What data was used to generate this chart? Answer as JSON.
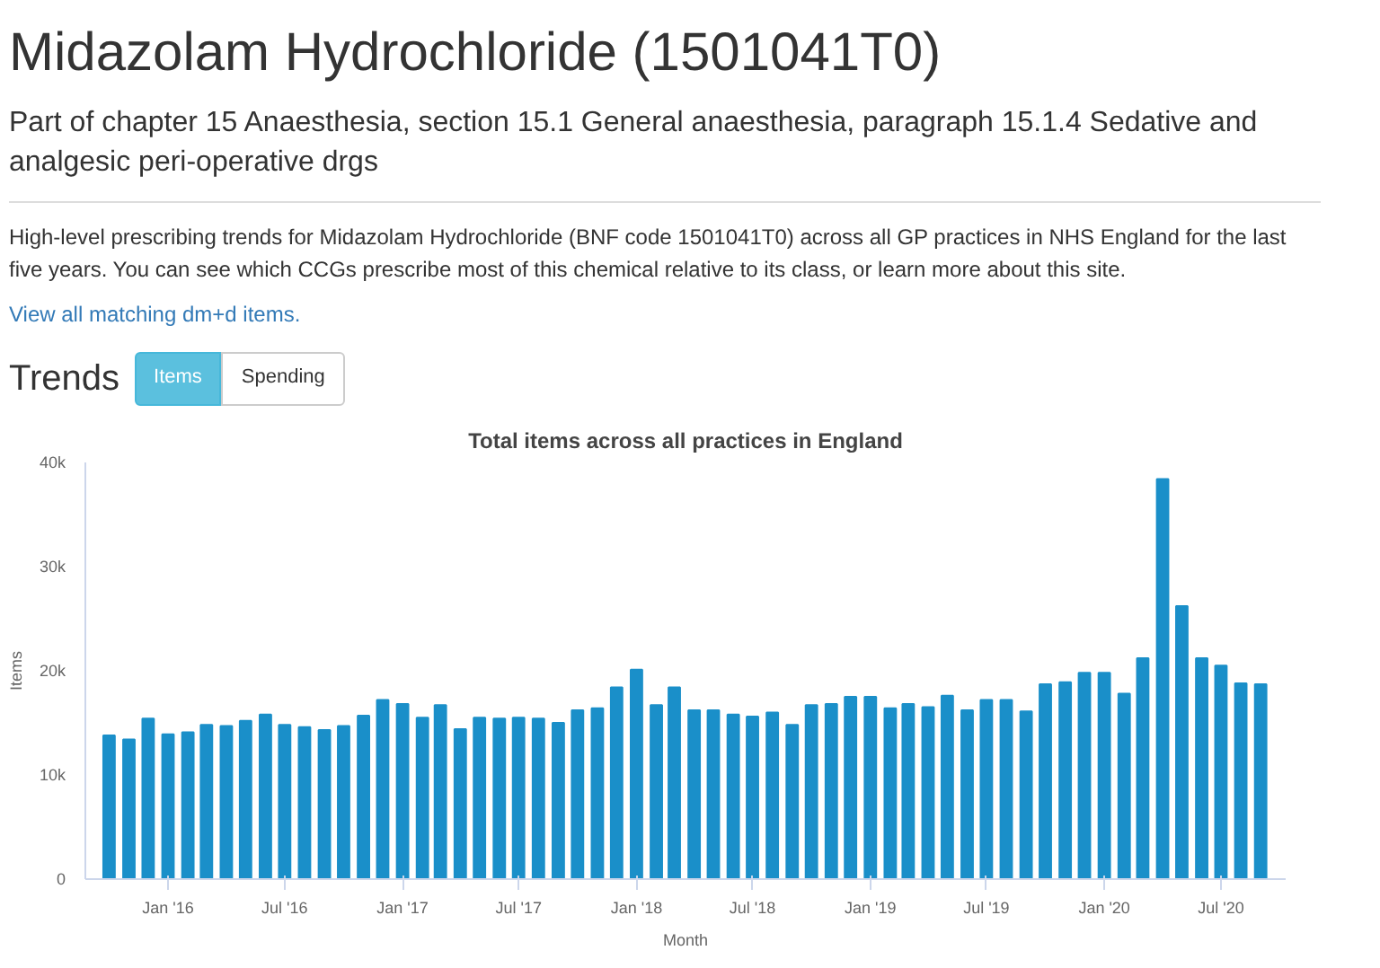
{
  "chart_data": {
    "type": "bar",
    "title": "Total items across all practices in England",
    "xlabel": "Month",
    "ylabel": "Items",
    "annotations": [
      "Midazolam Hydrochloride (1501041T0)",
      "Part of chapter 15 Anaesthesia, section 15.1 General anaesthesia, paragraph 15.1.4 Sedative and analgesic peri-operative drgs",
      "High-level prescribing trends for Midazolam Hydrochloride (BNF code 1501041T0) across all GP practices in NHS England for the last five years. You can see which CCGs prescribe most of this chemical relative to its class, or learn more about this site.",
      "View all matching dm+d items.",
      "Trends",
      "Items",
      "Spending"
    ],
    "x": [
      "2015-10",
      "2015-11",
      "2015-12",
      "2016-01",
      "2016-02",
      "2016-03",
      "2016-04",
      "2016-05",
      "2016-06",
      "2016-07",
      "2016-08",
      "2016-09",
      "2016-10",
      "2016-11",
      "2016-12",
      "2017-01",
      "2017-02",
      "2017-03",
      "2017-04",
      "2017-05",
      "2017-06",
      "2017-07",
      "2017-08",
      "2017-09",
      "2017-10",
      "2017-11",
      "2017-12",
      "2018-01",
      "2018-02",
      "2018-03",
      "2018-04",
      "2018-05",
      "2018-06",
      "2018-07",
      "2018-08",
      "2018-09",
      "2018-10",
      "2018-11",
      "2018-12",
      "2019-01",
      "2019-02",
      "2019-03",
      "2019-04",
      "2019-05",
      "2019-06",
      "2019-07",
      "2019-08",
      "2019-09",
      "2019-10",
      "2019-11",
      "2019-12",
      "2020-01",
      "2020-02",
      "2020-03",
      "2020-04",
      "2020-05",
      "2020-06",
      "2020-07",
      "2020-08",
      "2020-09"
    ],
    "values": [
      13800,
      13400,
      15400,
      13900,
      14100,
      14800,
      14700,
      15200,
      15800,
      14800,
      14600,
      14300,
      14700,
      15700,
      17200,
      16800,
      15500,
      16700,
      14400,
      15500,
      15400,
      15500,
      15400,
      15000,
      16200,
      16400,
      18400,
      20100,
      16700,
      18400,
      16200,
      16200,
      15800,
      15600,
      16000,
      14800,
      16700,
      16800,
      17500,
      17500,
      16400,
      16800,
      16500,
      17600,
      16200,
      17200,
      17200,
      16100,
      18700,
      18900,
      19800,
      19800,
      17800,
      21200,
      38400,
      26200,
      21200,
      20500,
      18800,
      18700
    ],
    "color": "#1a8fc9",
    "xlim": [
      "2015-08-25",
      "2020-10-10"
    ],
    "xticks": [
      {
        "value": "2016-01",
        "label": "Jan '16"
      },
      {
        "value": "2016-07",
        "label": "Jul '16"
      },
      {
        "value": "2017-01",
        "label": "Jan '17"
      },
      {
        "value": "2017-07",
        "label": "Jul '17"
      },
      {
        "value": "2018-01",
        "label": "Jan '18"
      },
      {
        "value": "2018-07",
        "label": "Jul '18"
      },
      {
        "value": "2019-01",
        "label": "Jan '19"
      },
      {
        "value": "2019-07",
        "label": "Jul '19"
      },
      {
        "value": "2020-01",
        "label": "Jan '20"
      },
      {
        "value": "2020-07",
        "label": "Jul '20"
      }
    ],
    "ylim": [
      0,
      40000
    ],
    "yticks": [
      0,
      {
        "value": 10000,
        "label": "10k"
      },
      {
        "value": 20000,
        "label": "20k"
      },
      {
        "value": 30000,
        "label": "30k"
      },
      {
        "value": 40000,
        "label": "40k"
      }
    ],
    "grid": false
  }
}
